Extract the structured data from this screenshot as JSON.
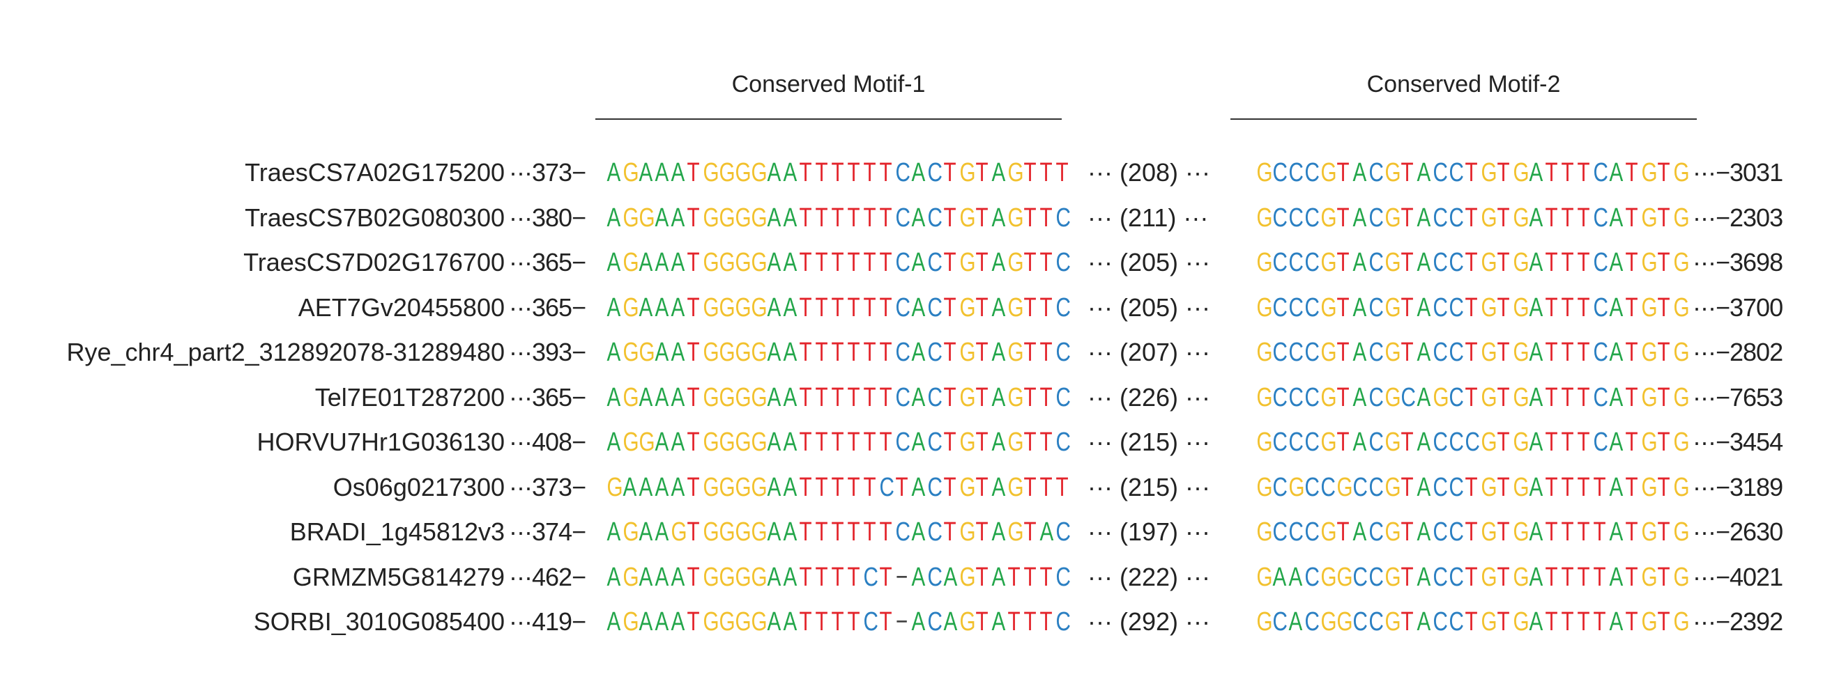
{
  "headers": {
    "motif1": "Conserved Motif-1",
    "motif2": "Conserved Motif-2"
  },
  "base_colors": {
    "A": "#23a64a",
    "G": "#f2c12e",
    "T": "#e3242b",
    "C": "#2a7fc2",
    "-": "#444444"
  },
  "rows": [
    {
      "name": "TraesCS7A02G175200",
      "start": "373",
      "motif1": "AGAAATGGGGAATTTTTTCACTGTAGTTT",
      "gap": "208",
      "motif2": "GCCCGTACGTACCTGTGATTTCATGTG",
      "end": "3031"
    },
    {
      "name": "TraesCS7B02G080300",
      "start": "380",
      "motif1": "AGGAATGGGGAATTTTTTCACTGTAGTTC",
      "gap": "211",
      "motif2": "GCCCGTACGTACCTGTGATTTCATGTG",
      "end": "2303"
    },
    {
      "name": "TraesCS7D02G176700",
      "start": "365",
      "motif1": "AGAAATGGGGAATTTTTTCACTGTAGTTC",
      "gap": "205",
      "motif2": "GCCCGTACGTACCTGTGATTTCATGTG",
      "end": "3698"
    },
    {
      "name": "AET7Gv20455800",
      "start": "365",
      "motif1": "AGAAATGGGGAATTTTTTCACTGTAGTTC",
      "gap": "205",
      "motif2": "GCCCGTACGTACCTGTGATTTCATGTG",
      "end": "3700"
    },
    {
      "name": "Rye_chr4_part2_312892078-31289480",
      "start": "393",
      "motif1": "AGGAATGGGGAATTTTTTCACTGTAGTTC",
      "gap": "207",
      "motif2": "GCCCGTACGTACCTGTGATTTCATGTG",
      "end": "2802"
    },
    {
      "name": "Tel7E01T287200",
      "start": "365",
      "motif1": "AGAAATGGGGAATTTTTTCACTGTAGTTC",
      "gap": "226",
      "motif2": "GCCCGTACGCAGCTGTGATTTCATGTG",
      "end": "7653"
    },
    {
      "name": "HORVU7Hr1G036130",
      "start": "408",
      "motif1": "AGGAATGGGGAATTTTTTCACTGTAGTTC",
      "gap": "215",
      "motif2": "GCCCGTACGTACCCGTGATTTCATGTG",
      "end": "3454"
    },
    {
      "name": "Os06g0217300",
      "start": "373",
      "motif1": "GAAAATGGGGAATTTTTCTACTGTAGTTT",
      "gap": "215",
      "motif2": "GCGCCGCCGTACCTGTGATTTTATGTG",
      "end": "3189"
    },
    {
      "name": "BRADI_1g45812v3",
      "start": "374",
      "motif1": "AGAAGTGGGGAATTTTTTCACTGTAGTAC",
      "gap": "197",
      "motif2": "GCCCGTACGTACCTGTGATTTTATGTG",
      "end": "2630"
    },
    {
      "name": "GRMZM5G814279",
      "start": "462",
      "motif1": "AGAAATGGGGAATTTTCT-ACAGTATTTC",
      "gap": "222",
      "motif2": "GAACGGCCGTACCTGTGATTTTATGTG",
      "end": "4021"
    },
    {
      "name": "SORBI_3010G085400",
      "start": "419",
      "motif1": "AGAAATGGGGAATTTTCT-ACAGTATTTC",
      "gap": "292",
      "motif2": "GCACGGCCGTACCTGTGATTTTATGTG",
      "end": "2392"
    }
  ]
}
